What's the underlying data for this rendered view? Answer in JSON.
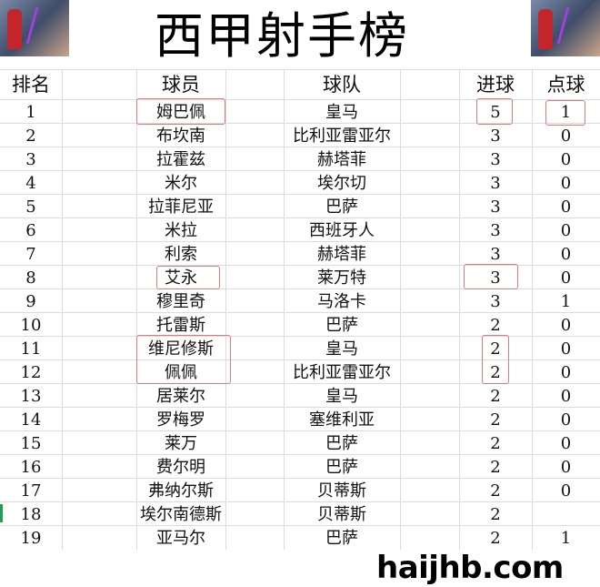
{
  "title": "西甲射手榜",
  "headers": {
    "rank": "排名",
    "player": "球员",
    "team": "球队",
    "goals": "进球",
    "penalties": "点球"
  },
  "rows": [
    {
      "rank": "1",
      "player": "姆巴佩",
      "team": "皇马",
      "goals": "5",
      "penalties": "1"
    },
    {
      "rank": "2",
      "player": "布坎南",
      "team": "比利亚雷亚尔",
      "goals": "3",
      "penalties": "0"
    },
    {
      "rank": "3",
      "player": "拉霍兹",
      "team": "赫塔菲",
      "goals": "3",
      "penalties": "0"
    },
    {
      "rank": "4",
      "player": "米尔",
      "team": "埃尔切",
      "goals": "3",
      "penalties": "0"
    },
    {
      "rank": "5",
      "player": "拉菲尼亚",
      "team": "巴萨",
      "goals": "3",
      "penalties": "0"
    },
    {
      "rank": "6",
      "player": "米拉",
      "team": "西班牙人",
      "goals": "3",
      "penalties": "0"
    },
    {
      "rank": "7",
      "player": "利索",
      "team": "赫塔菲",
      "goals": "3",
      "penalties": "0"
    },
    {
      "rank": "8",
      "player": "艾永",
      "team": "莱万特",
      "goals": "3",
      "penalties": "0"
    },
    {
      "rank": "9",
      "player": "穆里奇",
      "team": "马洛卡",
      "goals": "3",
      "penalties": "1"
    },
    {
      "rank": "10",
      "player": "托雷斯",
      "team": "巴萨",
      "goals": "2",
      "penalties": "0"
    },
    {
      "rank": "11",
      "player": "维尼修斯",
      "team": "皇马",
      "goals": "2",
      "penalties": "0"
    },
    {
      "rank": "12",
      "player": "佩佩",
      "team": "比利亚雷亚尔",
      "goals": "2",
      "penalties": "0"
    },
    {
      "rank": "13",
      "player": "居莱尔",
      "team": "皇马",
      "goals": "2",
      "penalties": "0"
    },
    {
      "rank": "14",
      "player": "罗梅罗",
      "team": "塞维利亚",
      "goals": "2",
      "penalties": "0"
    },
    {
      "rank": "15",
      "player": "莱万",
      "team": "巴萨",
      "goals": "2",
      "penalties": "0"
    },
    {
      "rank": "16",
      "player": "费尔明",
      "team": "巴萨",
      "goals": "2",
      "penalties": "0"
    },
    {
      "rank": "17",
      "player": "弗纳尔斯",
      "team": "贝蒂斯",
      "goals": "2",
      "penalties": "0"
    },
    {
      "rank": "18",
      "player": "埃尔南德斯",
      "team": "贝蒂斯",
      "goals": "2",
      "penalties": ""
    },
    {
      "rank": "19",
      "player": "亚马尔",
      "team": "巴萨",
      "goals": "2",
      "penalties": "1"
    }
  ],
  "watermark": "haijhb.com",
  "colors": {
    "highlight_box": "#e07a7a",
    "grid": "#dcdcdc"
  }
}
